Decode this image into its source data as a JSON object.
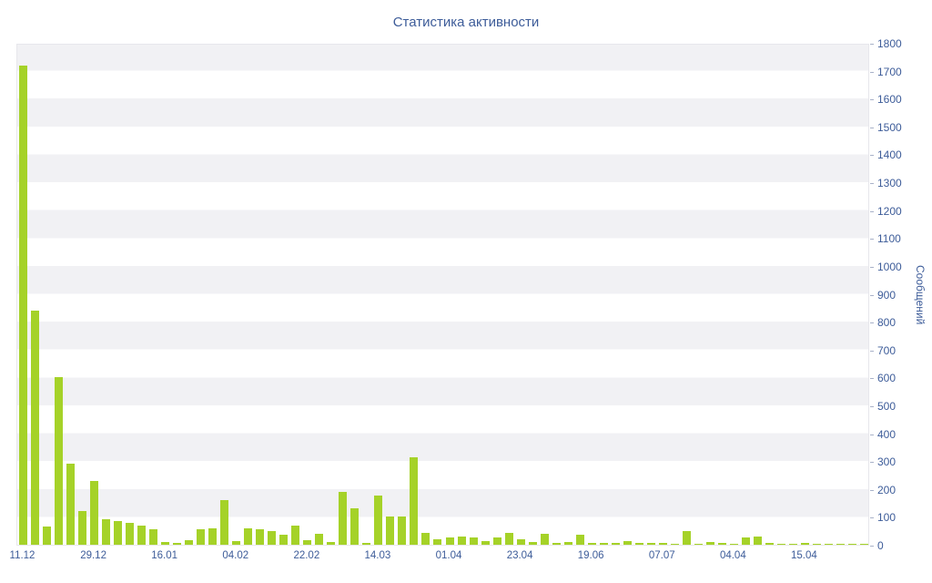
{
  "title": "Статистика активности",
  "colors": {
    "accent": "#a5d228",
    "axis_text": "#3d5c99",
    "band_grey": "#f1f1f4",
    "background": "#ffffff",
    "plot_border": "#e7e7ec"
  },
  "chart_data": {
    "type": "bar",
    "title": "Статистика активности",
    "xlabel": "",
    "ylabel": "Сообщений",
    "ylim": [
      0,
      1800
    ],
    "y_tick_step": 100,
    "y_ticks": [
      0,
      100,
      200,
      300,
      400,
      500,
      600,
      700,
      800,
      900,
      1000,
      1100,
      1200,
      1300,
      1400,
      1500,
      1600,
      1700,
      1800
    ],
    "x_tick_labels": [
      "11.12",
      "29.12",
      "16.01",
      "04.02",
      "22.02",
      "14.03",
      "01.04",
      "23.04",
      "19.06",
      "07.07",
      "04.04",
      "15.04"
    ],
    "x_tick_every": 6,
    "bar_color": "#a5d228",
    "grid": "horizontal-bands",
    "legend": "none",
    "values": [
      1720,
      840,
      65,
      600,
      290,
      120,
      230,
      92,
      85,
      80,
      70,
      55,
      10,
      6,
      15,
      55,
      60,
      160,
      12,
      60,
      55,
      50,
      35,
      70,
      15,
      40,
      10,
      190,
      130,
      8,
      175,
      100,
      100,
      315,
      42,
      20,
      25,
      30,
      25,
      12,
      25,
      42,
      20,
      10,
      40,
      6,
      10,
      35,
      6,
      8,
      5,
      12,
      5,
      6,
      5,
      4,
      50,
      4,
      10,
      5,
      4,
      25,
      30,
      5,
      4,
      3,
      5,
      3,
      3,
      4,
      3,
      3
    ]
  }
}
